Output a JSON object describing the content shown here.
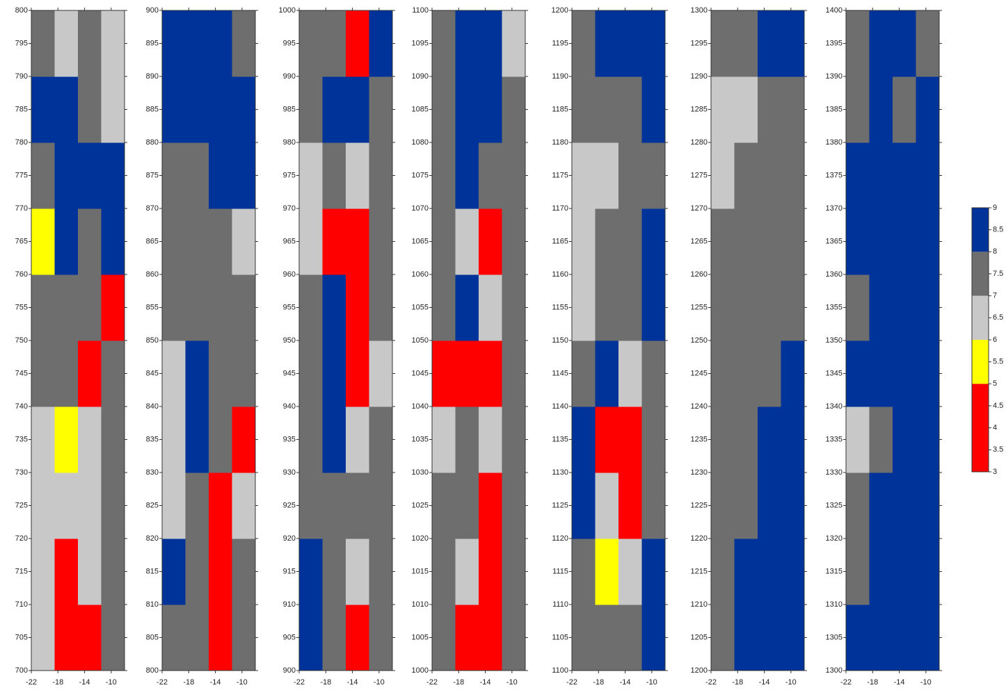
{
  "chart_data": [
    {
      "type": "heatmap",
      "xlim": [
        -22,
        -8
      ],
      "xticks": [
        -22,
        -18,
        -14,
        -10
      ],
      "ylim": [
        700,
        800
      ],
      "yticks": [
        700,
        705,
        710,
        715,
        720,
        725,
        730,
        735,
        740,
        745,
        750,
        755,
        760,
        765,
        770,
        775,
        780,
        785,
        790,
        795,
        800
      ],
      "z": [
        [
          6.5,
          4,
          4.5,
          7.5
        ],
        [
          6.5,
          5,
          7,
          7.5
        ],
        [
          6.5,
          6.5,
          7,
          7.5
        ],
        [
          6.5,
          5.5,
          7,
          7.5
        ],
        [
          7.5,
          7.5,
          4.5,
          7.5
        ],
        [
          7.5,
          7.5,
          7.5,
          4
        ],
        [
          5.5,
          8.5,
          8,
          8.5
        ],
        [
          7.5,
          8.5,
          8.5,
          8.5
        ],
        [
          8.5,
          8.5,
          8,
          6.5
        ],
        [
          7.5,
          6.5,
          7.5,
          6.5
        ]
      ]
    },
    {
      "type": "heatmap",
      "xlim": [
        -22,
        -8
      ],
      "xticks": [
        -22,
        -18,
        -14,
        -10
      ],
      "ylim": [
        800,
        900
      ],
      "yticks": [
        800,
        805,
        810,
        815,
        820,
        825,
        830,
        835,
        840,
        845,
        850,
        855,
        860,
        865,
        870,
        875,
        880,
        885,
        890,
        895,
        900
      ],
      "z": [
        [
          7.5,
          7.5,
          4.5,
          7.5
        ],
        [
          8.5,
          7.5,
          5,
          7.5
        ],
        [
          6.5,
          7.5,
          4.5,
          7
        ],
        [
          6.5,
          8.5,
          7.5,
          5
        ],
        [
          7,
          8.5,
          7.5,
          7.5
        ],
        [
          7.5,
          7.5,
          7.5,
          7.5
        ],
        [
          8,
          7.5,
          7.5,
          6.5
        ],
        [
          7.5,
          8,
          8.5,
          8.5
        ],
        [
          8.5,
          8.5,
          8.5,
          8.5
        ],
        [
          8.5,
          8.5,
          8.5,
          7.5
        ]
      ]
    },
    {
      "type": "heatmap",
      "xlim": [
        -22,
        -8
      ],
      "xticks": [
        -22,
        -18,
        -14,
        -10
      ],
      "ylim": [
        900,
        1000
      ],
      "yticks": [
        900,
        905,
        910,
        915,
        920,
        925,
        930,
        935,
        940,
        945,
        950,
        955,
        960,
        965,
        970,
        975,
        980,
        985,
        990,
        995,
        1000
      ],
      "z": [
        [
          8.5,
          7.5,
          5,
          7.5
        ],
        [
          8.5,
          7.5,
          7,
          7.5
        ],
        [
          7.5,
          7.5,
          7.5,
          8
        ],
        [
          7.5,
          8.5,
          6.5,
          7.5
        ],
        [
          7.5,
          8.5,
          4.5,
          7
        ],
        [
          7.5,
          8.5,
          5,
          8
        ],
        [
          6.5,
          5,
          5,
          7.5
        ],
        [
          6.5,
          7.5,
          7,
          7.5
        ],
        [
          7.5,
          8.5,
          8.5,
          8
        ],
        [
          7.5,
          7.5,
          4.5,
          8.5
        ]
      ]
    },
    {
      "type": "heatmap",
      "xlim": [
        -22,
        -8
      ],
      "xticks": [
        -22,
        -18,
        -14,
        -10
      ],
      "ylim": [
        1000,
        1100
      ],
      "yticks": [
        1000,
        1005,
        1010,
        1015,
        1020,
        1025,
        1030,
        1035,
        1040,
        1045,
        1050,
        1055,
        1060,
        1065,
        1070,
        1075,
        1080,
        1085,
        1090,
        1095,
        1100
      ],
      "z": [
        [
          7.5,
          4.5,
          4.5,
          7.5
        ],
        [
          7.5,
          6.5,
          5,
          7.5
        ],
        [
          7.5,
          8,
          5,
          7.5
        ],
        [
          6.5,
          8,
          6.5,
          7.5
        ],
        [
          4.5,
          4,
          4.5,
          7.5
        ],
        [
          8,
          8.5,
          6.5,
          7.5
        ],
        [
          7.5,
          7,
          4.5,
          7.5
        ],
        [
          8,
          8.5,
          8,
          7.5
        ],
        [
          8,
          8.5,
          8.5,
          7.5
        ],
        [
          7.5,
          8.5,
          8.5,
          6.5
        ]
      ]
    },
    {
      "type": "heatmap",
      "xlim": [
        -22,
        -8
      ],
      "xticks": [
        -22,
        -18,
        -14,
        -10
      ],
      "ylim": [
        1100,
        1200
      ],
      "yticks": [
        1100,
        1105,
        1110,
        1115,
        1120,
        1125,
        1130,
        1135,
        1140,
        1145,
        1150,
        1155,
        1160,
        1165,
        1170,
        1175,
        1180,
        1185,
        1190,
        1195,
        1200
      ],
      "z": [
        [
          7.5,
          7.5,
          7.5,
          8.5
        ],
        [
          7.5,
          5.5,
          7,
          8.5
        ],
        [
          8.5,
          6.5,
          5,
          7.5
        ],
        [
          8.5,
          4.5,
          4.5,
          7.5
        ],
        [
          7.5,
          8.5,
          6.5,
          8
        ],
        [
          6.5,
          7.5,
          7.5,
          8.5
        ],
        [
          6.5,
          7.5,
          7.5,
          8.5
        ],
        [
          6.5,
          6.5,
          7.5,
          8
        ],
        [
          7.5,
          7.5,
          7.5,
          8.5
        ],
        [
          8,
          8.5,
          8.5,
          8.5
        ]
      ]
    },
    {
      "type": "heatmap",
      "xlim": [
        -22,
        -8
      ],
      "xticks": [
        -22,
        -18,
        -14,
        -10
      ],
      "ylim": [
        1200,
        1300
      ],
      "yticks": [
        1200,
        1205,
        1210,
        1215,
        1220,
        1225,
        1230,
        1235,
        1240,
        1245,
        1250,
        1255,
        1260,
        1265,
        1270,
        1275,
        1280,
        1285,
        1290,
        1295,
        1300
      ],
      "z": [
        [
          8,
          8.5,
          8.5,
          8.5
        ],
        [
          7.5,
          8.5,
          8.5,
          8.5
        ],
        [
          7.5,
          7.5,
          8.5,
          8.5
        ],
        [
          7.5,
          7.5,
          8.5,
          8.5
        ],
        [
          7.5,
          7.5,
          7.5,
          8.5
        ],
        [
          7.5,
          7.5,
          7.5,
          7.5
        ],
        [
          8,
          7.5,
          7.5,
          7.5
        ],
        [
          7,
          7.5,
          7.5,
          7.5
        ],
        [
          6.5,
          6.5,
          7.5,
          7.5
        ],
        [
          7.5,
          7.5,
          8.5,
          8.5
        ]
      ]
    },
    {
      "type": "heatmap",
      "xlim": [
        -22,
        -8
      ],
      "xticks": [
        -22,
        -18,
        -14,
        -10
      ],
      "ylim": [
        1300,
        1400
      ],
      "yticks": [
        1300,
        1305,
        1310,
        1315,
        1320,
        1325,
        1330,
        1335,
        1340,
        1345,
        1350,
        1355,
        1360,
        1365,
        1370,
        1375,
        1380,
        1385,
        1390,
        1395,
        1400
      ],
      "z": [
        [
          8.5,
          8.5,
          8.5,
          8.5
        ],
        [
          7.5,
          8.5,
          8.5,
          8.5
        ],
        [
          7.5,
          8.5,
          8.5,
          8.5
        ],
        [
          7,
          7.5,
          8.5,
          8.5
        ],
        [
          8.5,
          8.5,
          8.5,
          8.5
        ],
        [
          7.5,
          8.5,
          8.5,
          8.5
        ],
        [
          8.5,
          8.5,
          8.5,
          8.5
        ],
        [
          8.5,
          8.5,
          8.5,
          8.5
        ],
        [
          8,
          8.5,
          8,
          8.5
        ],
        [
          7.5,
          8.5,
          8.5,
          7.5
        ]
      ]
    },
    {
      "type": "colorbar",
      "ylim": [
        3,
        9
      ],
      "yticks": [
        3,
        3.5,
        4,
        4.5,
        5,
        5.5,
        6,
        6.5,
        7,
        7.5,
        8,
        8.5,
        9
      ],
      "levels": [
        3,
        5,
        6,
        7,
        8,
        9
      ],
      "colors": [
        "#ff0000",
        "#ffff00",
        "#c8c8c8",
        "#6e6e6e",
        "#003399"
      ]
    }
  ]
}
